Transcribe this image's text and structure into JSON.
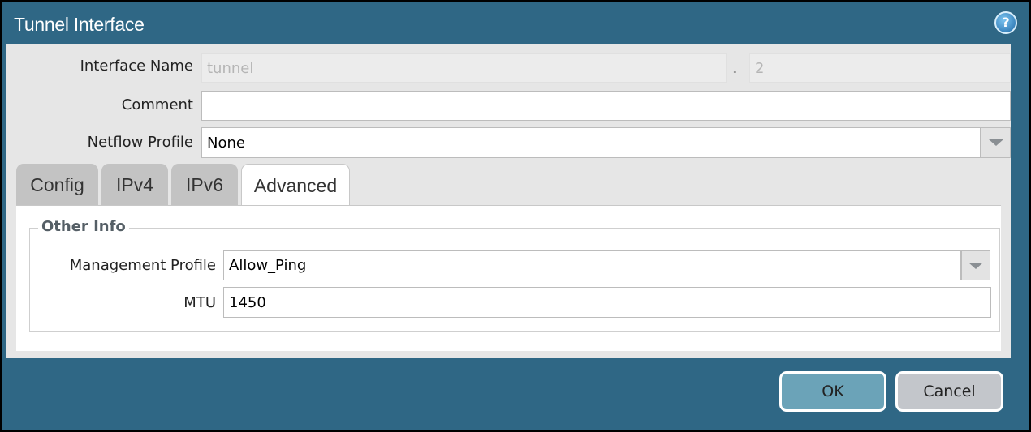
{
  "dialog": {
    "title": "Tunnel Interface",
    "help_icon": "help-icon"
  },
  "form": {
    "interface_name": {
      "label": "Interface Name",
      "value": "tunnel",
      "separator": ".",
      "suffix": "2"
    },
    "comment": {
      "label": "Comment",
      "value": ""
    },
    "netflow_profile": {
      "label": "Netflow Profile",
      "value": "None"
    }
  },
  "tabs": [
    {
      "label": "Config"
    },
    {
      "label": "IPv4"
    },
    {
      "label": "IPv6"
    },
    {
      "label": "Advanced",
      "active": true
    }
  ],
  "advanced": {
    "section_title": "Other Info",
    "management_profile": {
      "label": "Management Profile",
      "value": "Allow_Ping"
    },
    "mtu": {
      "label": "MTU",
      "value": "1450"
    }
  },
  "buttons": {
    "ok": "OK",
    "cancel": "Cancel"
  },
  "colors": {
    "titlebar": "#2f6785",
    "ok_button": "#6ba3b8",
    "cancel_button": "#c3c6cb"
  }
}
